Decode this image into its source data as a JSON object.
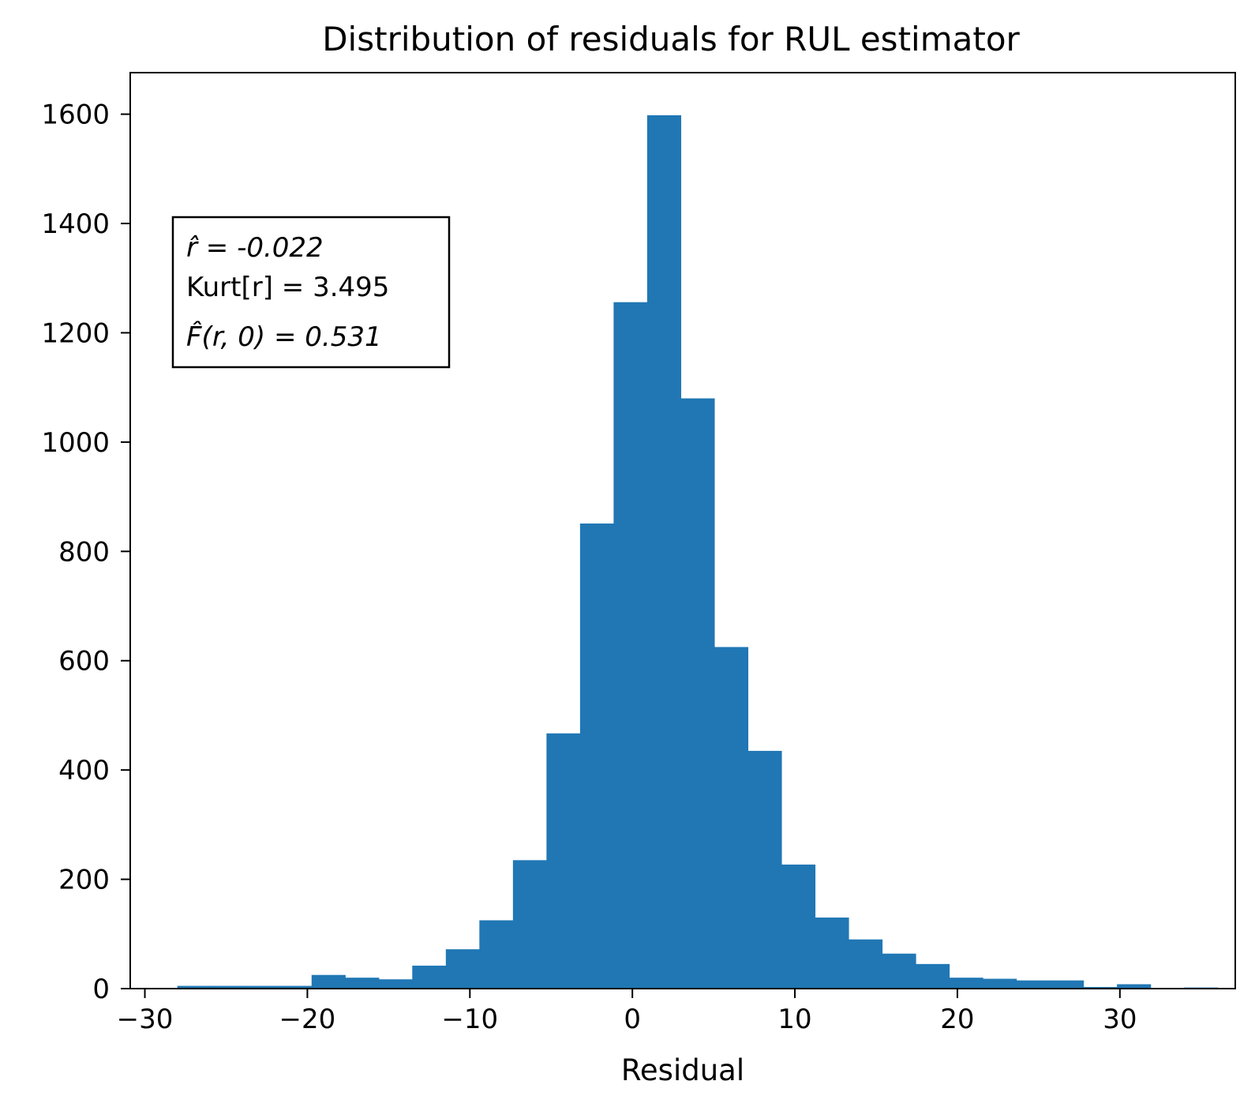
{
  "chart_data": {
    "type": "bar",
    "title": "Distribution of residuals for RUL estimator",
    "xlabel": "Residual",
    "ylabel": "",
    "xlim": [
      -30.9,
      37.1
    ],
    "ylim": [
      0,
      1676
    ],
    "bar_color": "#2077b4",
    "grid": false,
    "x_ticks": [
      -30,
      -20,
      -10,
      0,
      10,
      20,
      30
    ],
    "x_tick_labels": [
      "−30",
      "−20",
      "−10",
      "0",
      "10",
      "20",
      "30"
    ],
    "y_ticks": [
      0,
      200,
      400,
      600,
      800,
      1000,
      1200,
      1400,
      1600
    ],
    "y_tick_labels": [
      "0",
      "200",
      "400",
      "600",
      "800",
      "1000",
      "1200",
      "1400",
      "1600"
    ],
    "bins": {
      "start": -28.0,
      "width": 2.065,
      "counts": [
        5,
        5,
        5,
        5,
        25,
        20,
        17,
        42,
        72,
        125,
        235,
        467,
        851,
        1256,
        1598,
        1080,
        625,
        435,
        227,
        130,
        90,
        64,
        45,
        20,
        18,
        15,
        15,
        3,
        8,
        1,
        2
      ]
    },
    "annotation": {
      "lines": [
        "r̂ = -0.022",
        "Kurt[r] = 3.495",
        "F̂(r, 0) = 0.531"
      ],
      "placement": "upper-left"
    }
  }
}
